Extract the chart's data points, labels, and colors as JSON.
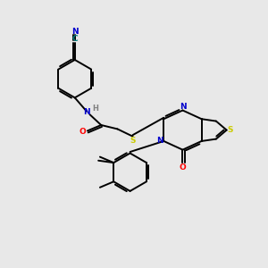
{
  "background_color": "#e8e8e8",
  "bond_color": "#000000",
  "atom_colors": {
    "N": "#0000cc",
    "O": "#ff0000",
    "S": "#cccc00",
    "C_teal": "#008080",
    "H": "#808080"
  },
  "figsize": [
    3.0,
    3.0
  ],
  "dpi": 100,
  "lw": 1.4,
  "dbl_off": 0.07
}
